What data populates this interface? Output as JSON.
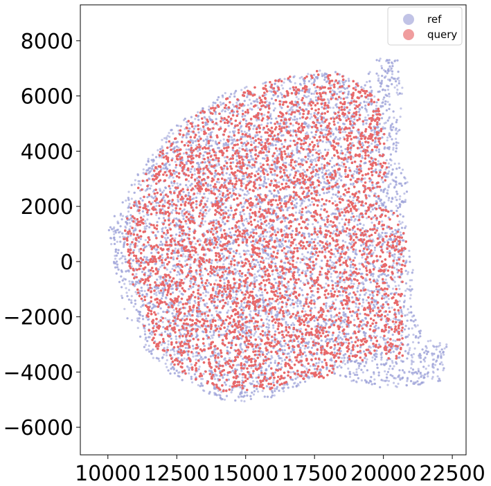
{
  "chart_data": {
    "type": "scatter",
    "title": "",
    "xlabel": "",
    "ylabel": "",
    "xlim": [
      9000,
      23000
    ],
    "ylim": [
      -7000,
      9300
    ],
    "xticks": [
      10000,
      12500,
      15000,
      17500,
      20000,
      22500
    ],
    "yticks": [
      -6000,
      -4000,
      -2000,
      0,
      2000,
      4000,
      6000,
      8000
    ],
    "xtick_labels": [
      "10000",
      "12500",
      "15000",
      "17500",
      "20000",
      "22500"
    ],
    "ytick_labels": [
      "−6000",
      "−4000",
      "−2000",
      "0",
      "2000",
      "4000",
      "6000",
      "8000"
    ],
    "grid": false,
    "legend_position": "top-right",
    "series": [
      {
        "name": "ref",
        "color": "#9fa3d8",
        "alpha": 0.6,
        "outline": [
          [
            10000,
            1200
          ],
          [
            10300,
            -500
          ],
          [
            10700,
            -2100
          ],
          [
            11300,
            -3100
          ],
          [
            12000,
            -3900
          ],
          [
            13000,
            -4500
          ],
          [
            14000,
            -5000
          ],
          [
            15000,
            -5100
          ],
          [
            16000,
            -4900
          ],
          [
            16800,
            -4600
          ],
          [
            17500,
            -4200
          ],
          [
            18000,
            -4000
          ],
          [
            19000,
            -4400
          ],
          [
            20000,
            -4600
          ],
          [
            21000,
            -4500
          ],
          [
            22200,
            -4300
          ],
          [
            22300,
            -3000
          ],
          [
            21500,
            -2800
          ],
          [
            21100,
            -1800
          ],
          [
            21100,
            0
          ],
          [
            20800,
            900
          ],
          [
            20900,
            3000
          ],
          [
            20500,
            3800
          ],
          [
            20700,
            6200
          ],
          [
            20500,
            7400
          ],
          [
            19800,
            7400
          ],
          [
            19200,
            6400
          ],
          [
            18000,
            7000
          ],
          [
            16000,
            6600
          ],
          [
            14200,
            6100
          ],
          [
            12200,
            4800
          ],
          [
            10900,
            2900
          ]
        ],
        "n_points": 9000
      },
      {
        "name": "query",
        "color": "#e8686a",
        "alpha": 0.85,
        "outline": [
          [
            10500,
            800
          ],
          [
            10900,
            -800
          ],
          [
            11200,
            -2200
          ],
          [
            11800,
            -3200
          ],
          [
            12800,
            -4100
          ],
          [
            14200,
            -4700
          ],
          [
            15800,
            -4700
          ],
          [
            16800,
            -4300
          ],
          [
            17500,
            -4200
          ],
          [
            18300,
            -4300
          ],
          [
            18400,
            -3700
          ],
          [
            19500,
            -3600
          ],
          [
            20700,
            -3500
          ],
          [
            20700,
            -1000
          ],
          [
            20900,
            700
          ],
          [
            20500,
            1800
          ],
          [
            19800,
            2200
          ],
          [
            20200,
            3300
          ],
          [
            19900,
            5800
          ],
          [
            19000,
            6500
          ],
          [
            18200,
            6900
          ],
          [
            17000,
            6900
          ],
          [
            15500,
            6400
          ],
          [
            14200,
            5900
          ],
          [
            12800,
            5100
          ],
          [
            11700,
            3800
          ],
          [
            10900,
            2300
          ]
        ],
        "n_points": 14000
      }
    ]
  }
}
